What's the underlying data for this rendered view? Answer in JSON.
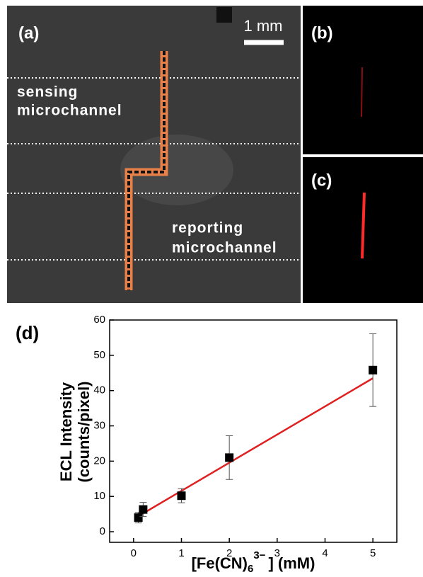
{
  "panels": {
    "a": {
      "label": "(a)",
      "scale_bar": "1 mm",
      "sensing": [
        "sensing",
        "microchannel"
      ],
      "reporting": [
        "reporting",
        "microchannel"
      ]
    },
    "b": {
      "label": "(b)"
    },
    "c": {
      "label": "(c)"
    }
  },
  "chart_data": {
    "type": "scatter",
    "label": "(d)",
    "ylabel": [
      "ECL Intensity",
      "(counts/pixel)"
    ],
    "xlabel": {
      "text": "[Fe(CN)",
      "sub": "6",
      "sup": "3−",
      "tail": "] (mM)"
    },
    "x": [
      0.1,
      0.2,
      1,
      2,
      5
    ],
    "series": [
      {
        "color": "#000000",
        "values": [
          4,
          6.3,
          10.2,
          21,
          45.8
        ],
        "errors": [
          1.5,
          2,
          2,
          6.2,
          10.3
        ]
      }
    ],
    "fit": {
      "color": "#e02020",
      "x": [
        0.1,
        5
      ],
      "y": [
        4.4,
        43.5
      ]
    },
    "xlim": [
      -0.5,
      5.5
    ],
    "ylim": [
      -3,
      60
    ],
    "xticks": [
      0,
      1,
      2,
      3,
      4,
      5
    ],
    "yticks": [
      0,
      10,
      20,
      30,
      40,
      50,
      60
    ]
  }
}
